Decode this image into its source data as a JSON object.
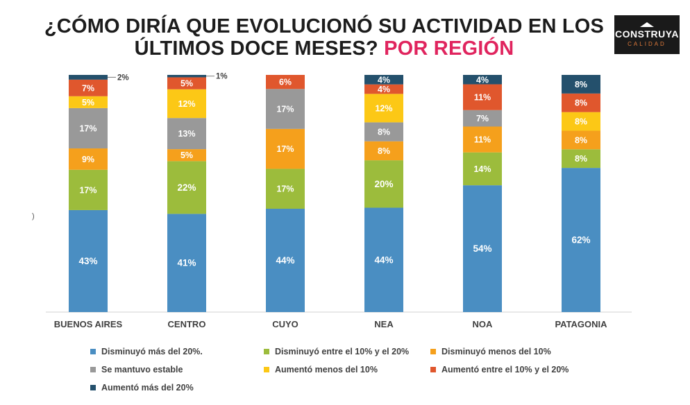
{
  "header": {
    "title_line1": "¿CÓMO DIRÍA QUE EVOLUCIONÓ SU ACTIVIDAD EN LOS",
    "title_line2_main": "ÚLTIMOS DOCE MESES?",
    "title_line2_accent": "POR REGIÓN",
    "accent_color": "#e0245e"
  },
  "logo": {
    "brand": "CONSTRUYA",
    "sub": "CALIDAD"
  },
  "edge_mark": ")",
  "chart_data": {
    "type": "bar",
    "stacked": true,
    "normalized": true,
    "categories": [
      "BUENOS AIRES",
      "CENTRO",
      "CUYO",
      "NEA",
      "NOA",
      "PATAGONIA"
    ],
    "series": [
      {
        "name": "Disminuyó más del 20%.",
        "color": "#4a8ec2",
        "values": [
          43,
          41,
          44,
          44,
          54,
          62
        ],
        "labels": [
          "43%",
          "41%",
          "44%",
          "44%",
          "54%",
          "62%"
        ]
      },
      {
        "name": "Disminuyó entre el 10% y el 20%",
        "color": "#9cbc3c",
        "values": [
          17,
          22,
          17,
          20,
          14,
          8
        ],
        "labels": [
          "17%",
          "22%",
          "17%",
          "20%",
          "14%",
          "8%"
        ]
      },
      {
        "name": "Disminuyó menos del 10%",
        "color": "#f5a01c",
        "values": [
          9,
          5,
          17,
          8,
          11,
          8
        ],
        "labels": [
          "9%",
          "5%",
          "17%",
          "8%",
          "11%",
          "8%"
        ]
      },
      {
        "name": "Se mantuvo estable",
        "color": "#999999",
        "values": [
          17,
          13,
          17,
          8,
          7,
          0
        ],
        "labels": [
          "17%",
          "13%",
          "17%",
          "8%",
          "7%",
          ""
        ]
      },
      {
        "name": "Aumentó menos del 10%",
        "color": "#fcc816",
        "values": [
          5,
          12,
          0,
          12,
          0,
          8
        ],
        "labels": [
          "5%",
          "12%",
          "",
          "12%",
          "",
          "8%"
        ]
      },
      {
        "name": "Aumentó entre el 10% y el 20%",
        "color": "#e0572d",
        "values": [
          7,
          5,
          6,
          4,
          11,
          8
        ],
        "labels": [
          "7%",
          "5%",
          "6%",
          "4%",
          "11%",
          "8%"
        ]
      },
      {
        "name": "Aumentó más del 20%",
        "color": "#24506c",
        "values": [
          2,
          1,
          0,
          4,
          4,
          8
        ],
        "labels": [
          "2%",
          "1%",
          "",
          "4%",
          "4%",
          "8%"
        ]
      }
    ],
    "title": "¿CÓMO DIRÍA QUE EVOLUCIONÓ SU ACTIVIDAD EN LOS ÚLTIMOS DOCE MESES? POR REGIÓN",
    "xlabel": "",
    "ylabel": "",
    "legend_position": "bottom"
  }
}
